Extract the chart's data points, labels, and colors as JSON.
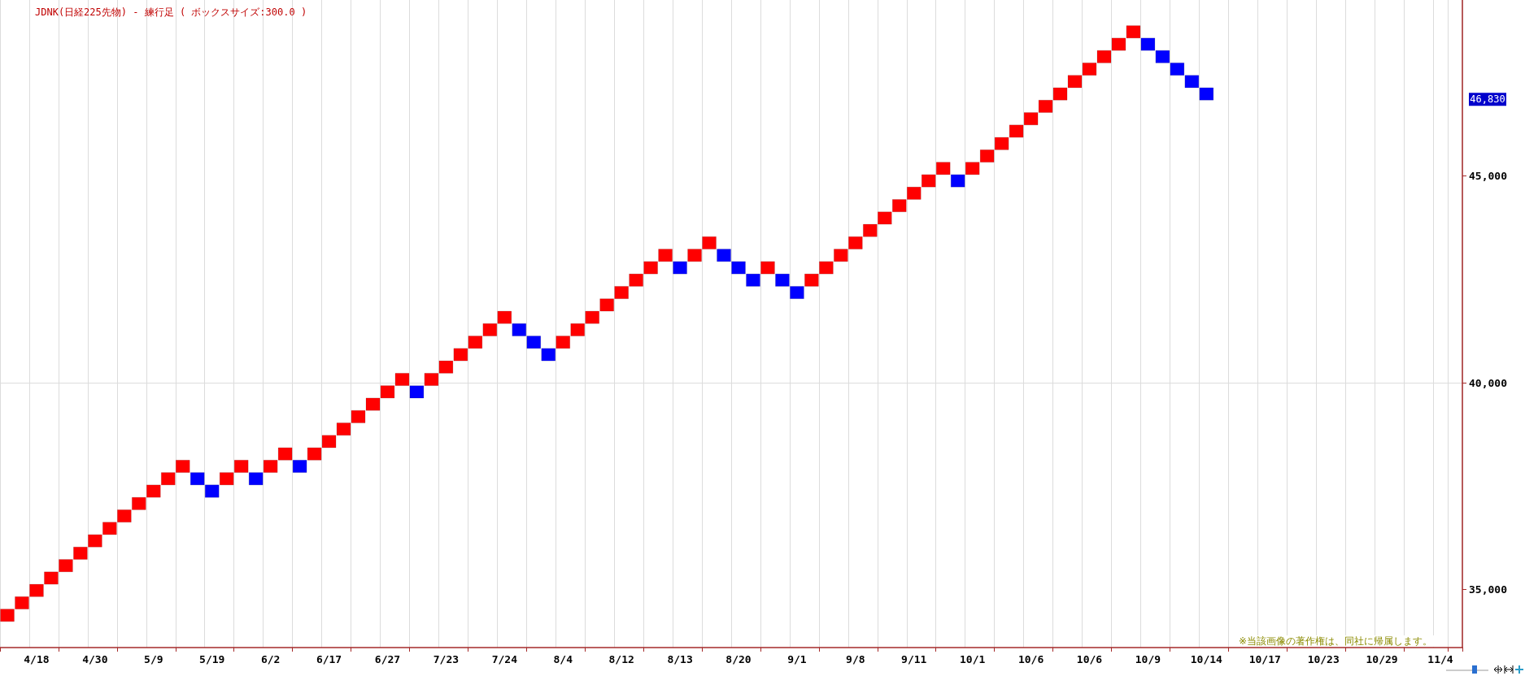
{
  "chart_data": {
    "type": "bar",
    "title": "JDNK(日経225先物) - 練行足 ( ボックスサイズ:300.0 )",
    "categories": [
      null,
      null,
      "4/18",
      null,
      null,
      null,
      "4/30",
      null,
      null,
      null,
      "5/9",
      null,
      null,
      null,
      "5/19",
      null,
      null,
      null,
      "6/2",
      null,
      null,
      null,
      "6/17",
      null,
      null,
      null,
      "6/27",
      null,
      null,
      null,
      "7/23",
      null,
      null,
      null,
      "7/24",
      null,
      null,
      null,
      "8/4",
      null,
      null,
      null,
      "8/12",
      null,
      null,
      null,
      "8/13",
      null,
      null,
      null,
      "8/20",
      null,
      null,
      null,
      "9/1",
      null,
      null,
      null,
      "9/8",
      null,
      null,
      null,
      "9/11",
      null,
      null,
      null,
      "10/1",
      null,
      null,
      null,
      "10/6",
      null,
      null,
      null,
      "10/6",
      null,
      null,
      null,
      "10/9",
      null,
      null,
      null,
      "10/14",
      null,
      null,
      null,
      "10/17",
      null,
      null,
      null,
      "10/23",
      null,
      null,
      null,
      "10/29",
      null,
      null,
      null,
      "11/4",
      null
    ],
    "values": [
      300,
      300,
      300,
      300,
      300,
      300,
      300,
      300,
      300,
      300,
      300,
      300,
      300,
      300,
      300,
      300,
      300,
      300,
      300,
      300,
      300,
      300,
      300,
      300,
      300,
      300,
      300,
      300,
      300,
      300,
      300,
      300,
      300,
      300,
      300,
      300,
      300,
      300,
      300,
      300,
      300,
      300,
      300,
      300,
      300,
      300,
      300,
      300,
      300,
      300,
      300,
      300,
      300,
      300,
      300,
      300,
      300,
      300,
      300,
      300,
      300,
      300,
      300,
      300,
      300,
      300,
      300,
      300,
      300,
      300,
      300,
      300,
      300,
      300,
      300,
      300,
      300,
      300,
      300,
      300,
      300,
      300,
      300,
      null,
      null,
      null,
      null,
      null,
      null,
      null,
      null,
      null,
      null,
      null,
      null,
      null,
      null,
      null,
      null,
      null
    ],
    "base": [
      34230,
      34530,
      34830,
      35130,
      35430,
      35730,
      36030,
      36330,
      36630,
      36930,
      37230,
      37530,
      37830,
      37530,
      37230,
      37530,
      37830,
      37530,
      37830,
      38130,
      37830,
      38130,
      38430,
      38730,
      39030,
      39330,
      39630,
      39930,
      39630,
      39930,
      40230,
      40530,
      40830,
      41130,
      41430,
      41130,
      40830,
      40530,
      40830,
      41130,
      41430,
      41730,
      42030,
      42330,
      42630,
      42930,
      42630,
      42930,
      43230,
      42930,
      42630,
      42330,
      42630,
      42330,
      42030,
      42330,
      42630,
      42930,
      43230,
      43530,
      43830,
      44130,
      44430,
      44730,
      45030,
      44730,
      45030,
      45330,
      45630,
      45930,
      46230,
      46530,
      46830,
      47130,
      47430,
      47730,
      48030,
      48330,
      48030,
      47730,
      47430,
      47130,
      46830,
      null,
      null,
      null,
      null,
      null,
      null,
      null,
      null,
      null,
      null,
      null,
      null,
      null,
      null,
      null,
      null,
      null
    ],
    "colors": [
      "#ff0000",
      "#ff0000",
      "#ff0000",
      "#ff0000",
      "#ff0000",
      "#ff0000",
      "#ff0000",
      "#ff0000",
      "#ff0000",
      "#ff0000",
      "#ff0000",
      "#ff0000",
      "#ff0000",
      "#0000ff",
      "#0000ff",
      "#ff0000",
      "#ff0000",
      "#0000ff",
      "#ff0000",
      "#ff0000",
      "#0000ff",
      "#ff0000",
      "#ff0000",
      "#ff0000",
      "#ff0000",
      "#ff0000",
      "#ff0000",
      "#ff0000",
      "#0000ff",
      "#ff0000",
      "#ff0000",
      "#ff0000",
      "#ff0000",
      "#ff0000",
      "#ff0000",
      "#0000ff",
      "#0000ff",
      "#0000ff",
      "#ff0000",
      "#ff0000",
      "#ff0000",
      "#ff0000",
      "#ff0000",
      "#ff0000",
      "#ff0000",
      "#ff0000",
      "#0000ff",
      "#ff0000",
      "#ff0000",
      "#0000ff",
      "#0000ff",
      "#0000ff",
      "#ff0000",
      "#0000ff",
      "#0000ff",
      "#ff0000",
      "#ff0000",
      "#ff0000",
      "#ff0000",
      "#ff0000",
      "#ff0000",
      "#ff0000",
      "#ff0000",
      "#ff0000",
      "#ff0000",
      "#0000ff",
      "#ff0000",
      "#ff0000",
      "#ff0000",
      "#ff0000",
      "#ff0000",
      "#ff0000",
      "#ff0000",
      "#ff0000",
      "#ff0000",
      "#ff0000",
      "#ff0000",
      "#ff0000",
      "#0000ff",
      "#0000ff",
      "#0000ff",
      "#0000ff",
      "#0000ff",
      null,
      null,
      null,
      null,
      null,
      null,
      null,
      null,
      null,
      null,
      null,
      null,
      null,
      null,
      null,
      null,
      null
    ],
    "ylim": [
      33600,
      49250
    ],
    "yticks": [
      {
        "value": 35000,
        "label": "35,000"
      },
      {
        "value": 40000,
        "label": "40,000"
      },
      {
        "value": 45000,
        "label": "45,000"
      }
    ],
    "grid": true,
    "annotations": [
      "46,830",
      "※当該画像の著作権は、同社に帰属します。"
    ]
  }
}
